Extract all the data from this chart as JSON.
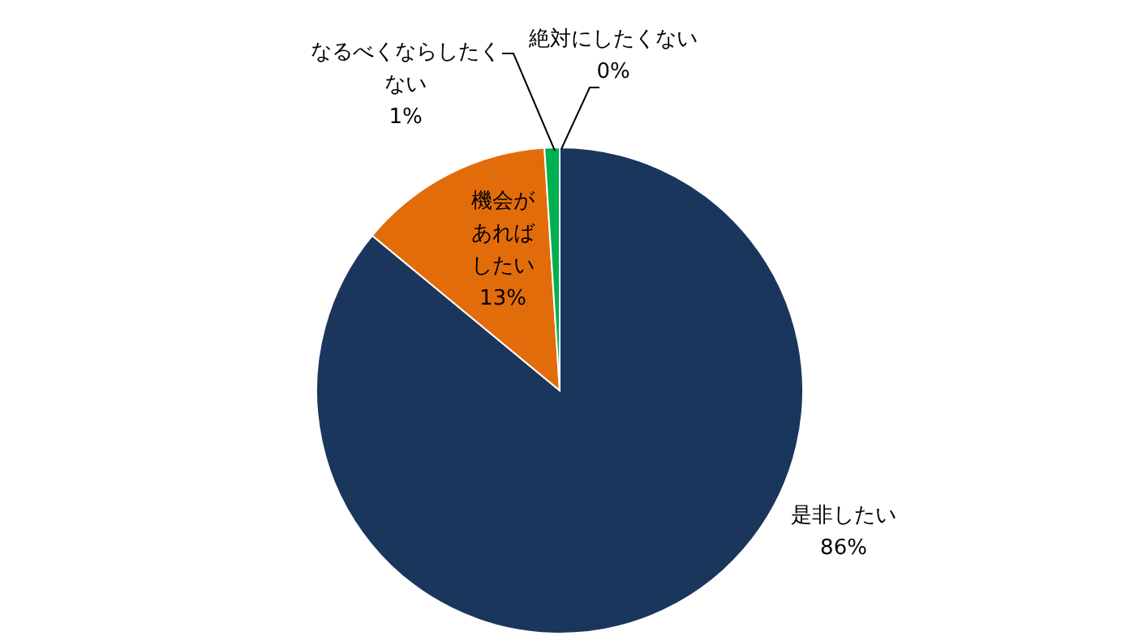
{
  "chart_data": {
    "type": "pie",
    "categories": [
      "是非したい",
      "機会があればしたい",
      "なるべくならしたくない",
      "絶対にしたくない"
    ],
    "values": [
      86,
      13,
      1,
      0
    ],
    "colors": [
      "#1a365d",
      "#e36c0a",
      "#00b050",
      "#4bacc6"
    ],
    "value_labels": [
      "86%",
      "13%",
      "1%",
      "0%"
    ],
    "legend": false
  }
}
